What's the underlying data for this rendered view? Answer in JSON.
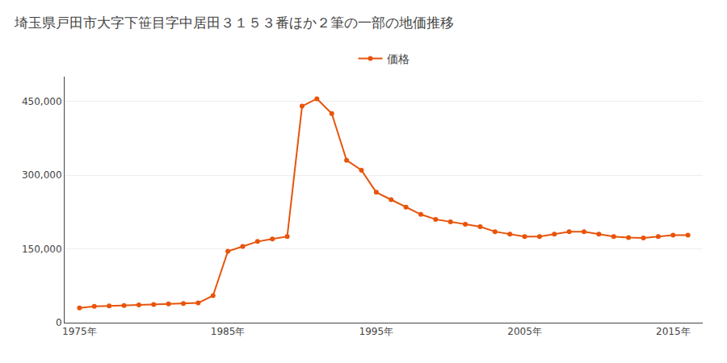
{
  "chart_data": {
    "type": "line",
    "title": "埼玉県戸田市大字下笹目字中居田３１５３番ほか２筆の一部の地価推移",
    "x": [
      1975,
      1976,
      1977,
      1978,
      1979,
      1980,
      1981,
      1982,
      1983,
      1984,
      1985,
      1986,
      1987,
      1988,
      1989,
      1990,
      1991,
      1992,
      1993,
      1994,
      1995,
      1996,
      1997,
      1998,
      1999,
      2000,
      2001,
      2002,
      2003,
      2004,
      2005,
      2006,
      2007,
      2008,
      2009,
      2010,
      2011,
      2012,
      2013,
      2014,
      2015,
      2016
    ],
    "series": [
      {
        "name": "価格",
        "color": "#e8540a",
        "marker": "circle",
        "values": [
          30000,
          33000,
          34000,
          35000,
          36000,
          37000,
          38000,
          39000,
          40000,
          55000,
          145000,
          155000,
          165000,
          170000,
          175000,
          440000,
          455000,
          425000,
          330000,
          310000,
          265000,
          250000,
          235000,
          220000,
          210000,
          205000,
          200000,
          195000,
          185000,
          180000,
          175000,
          175000,
          180000,
          185000,
          185000,
          180000,
          175000,
          173000,
          172000,
          175000,
          178000,
          178000
        ]
      }
    ],
    "xlim": [
      1974,
      2017
    ],
    "ylim": [
      0,
      500000
    ],
    "xticks": [
      {
        "value": 1975,
        "label": "1975年"
      },
      {
        "value": 1985,
        "label": "1985年"
      },
      {
        "value": 1995,
        "label": "1995年"
      },
      {
        "value": 2005,
        "label": "2005年"
      },
      {
        "value": 2015,
        "label": "2015年"
      }
    ],
    "yticks": [
      0,
      {
        "value": 150000,
        "label": "150,000"
      },
      {
        "value": 300000,
        "label": "300,000"
      },
      {
        "value": 450000,
        "label": "450,000"
      }
    ],
    "grid": "y",
    "legend": "top"
  }
}
